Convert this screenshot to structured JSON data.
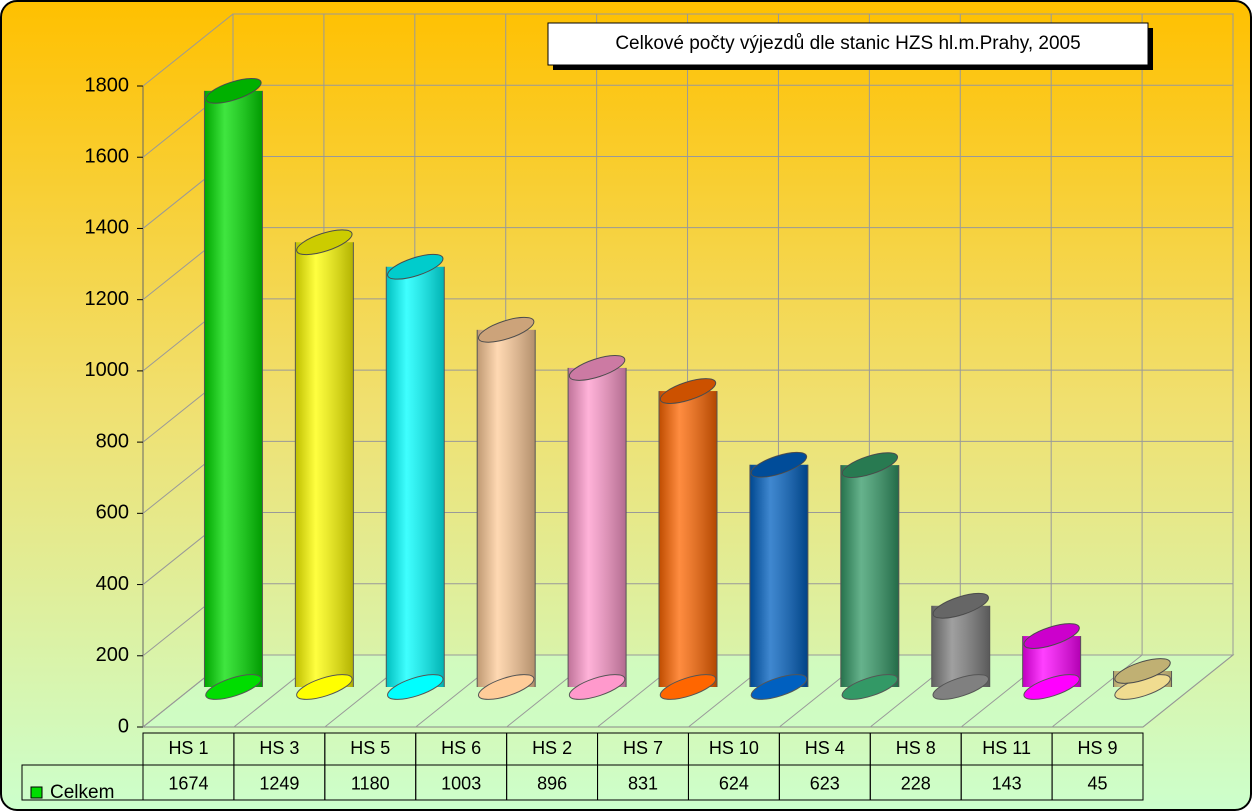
{
  "chart_data": {
    "type": "bar",
    "title": "Celkové počty výjezdů dle stanic HZS hl.m.Prahy, 2005",
    "categories": [
      "HS 1",
      "HS 3",
      "HS 5",
      "HS 6",
      "HS 2",
      "HS 7",
      "HS 10",
      "HS 4",
      "HS 8",
      "HS 11",
      "HS 9"
    ],
    "series": [
      {
        "name": "Celkem",
        "color": "#00dd00",
        "values": [
          1674,
          1249,
          1180,
          1003,
          896,
          831,
          624,
          623,
          228,
          143,
          45
        ]
      }
    ],
    "colors": [
      "#00dd00",
      "#ffff00",
      "#00ffff",
      "#ffcc99",
      "#ff99cc",
      "#ff6600",
      "#0060c0",
      "#339966",
      "#808080",
      "#ff00ff",
      "#f0dc90"
    ],
    "ylim": [
      0,
      1800
    ],
    "yticks": [
      0,
      200,
      400,
      600,
      800,
      1000,
      1200,
      1400,
      1600,
      1800
    ],
    "grid": true
  }
}
